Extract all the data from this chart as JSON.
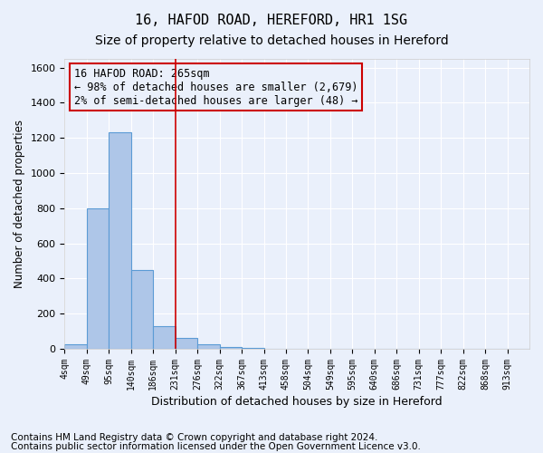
{
  "title1": "16, HAFOD ROAD, HEREFORD, HR1 1SG",
  "title2": "Size of property relative to detached houses in Hereford",
  "xlabel": "Distribution of detached houses by size in Hereford",
  "ylabel": "Number of detached properties",
  "bin_labels": [
    "4sqm",
    "49sqm",
    "95sqm",
    "140sqm",
    "186sqm",
    "231sqm",
    "276sqm",
    "322sqm",
    "367sqm",
    "413sqm",
    "458sqm",
    "504sqm",
    "549sqm",
    "595sqm",
    "640sqm",
    "686sqm",
    "731sqm",
    "777sqm",
    "822sqm",
    "868sqm",
    "913sqm"
  ],
  "bar_values": [
    25,
    800,
    1235,
    450,
    130,
    60,
    25,
    10,
    5,
    3,
    2,
    1,
    1,
    0,
    0,
    0,
    0,
    0,
    0,
    0,
    0
  ],
  "bar_color": "#aec6e8",
  "bar_edge_color": "#5b9bd5",
  "ylim": [
    0,
    1650
  ],
  "yticks": [
    0,
    200,
    400,
    600,
    800,
    1000,
    1200,
    1400,
    1600
  ],
  "property_line_x": 5.0,
  "annotation_text": "16 HAFOD ROAD: 265sqm\n← 98% of detached houses are smaller (2,679)\n2% of semi-detached houses are larger (48) →",
  "annotation_box_color": "#cc0000",
  "footer1": "Contains HM Land Registry data © Crown copyright and database right 2024.",
  "footer2": "Contains public sector information licensed under the Open Government Licence v3.0.",
  "bg_color": "#eaf0fb",
  "grid_color": "#ffffff",
  "title_fontsize": 11,
  "subtitle_fontsize": 10,
  "annot_fontsize": 8.5,
  "footer_fontsize": 7.5
}
